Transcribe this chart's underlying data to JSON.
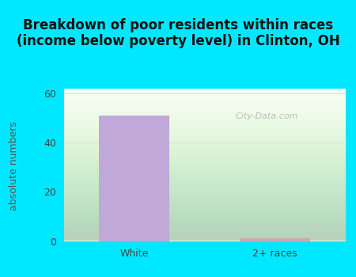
{
  "categories": [
    "White",
    "2+ races"
  ],
  "values": [
    51,
    1
  ],
  "bar_colors": [
    "#c0a8d8",
    "#c8a8b8"
  ],
  "title": "Breakdown of poor residents within races\n(income below poverty level) in Clinton, OH",
  "ylabel": "absolute numbers",
  "ylim": [
    0,
    62
  ],
  "yticks": [
    0,
    20,
    40,
    60
  ],
  "outer_bg": "#00e8ff",
  "plot_bg": "#f5fff0",
  "grid_color": "#d0e8d0",
  "title_fontsize": 12,
  "ylabel_fontsize": 9,
  "tick_fontsize": 9,
  "bar_width": 0.5,
  "watermark_text": "City-Data.com"
}
